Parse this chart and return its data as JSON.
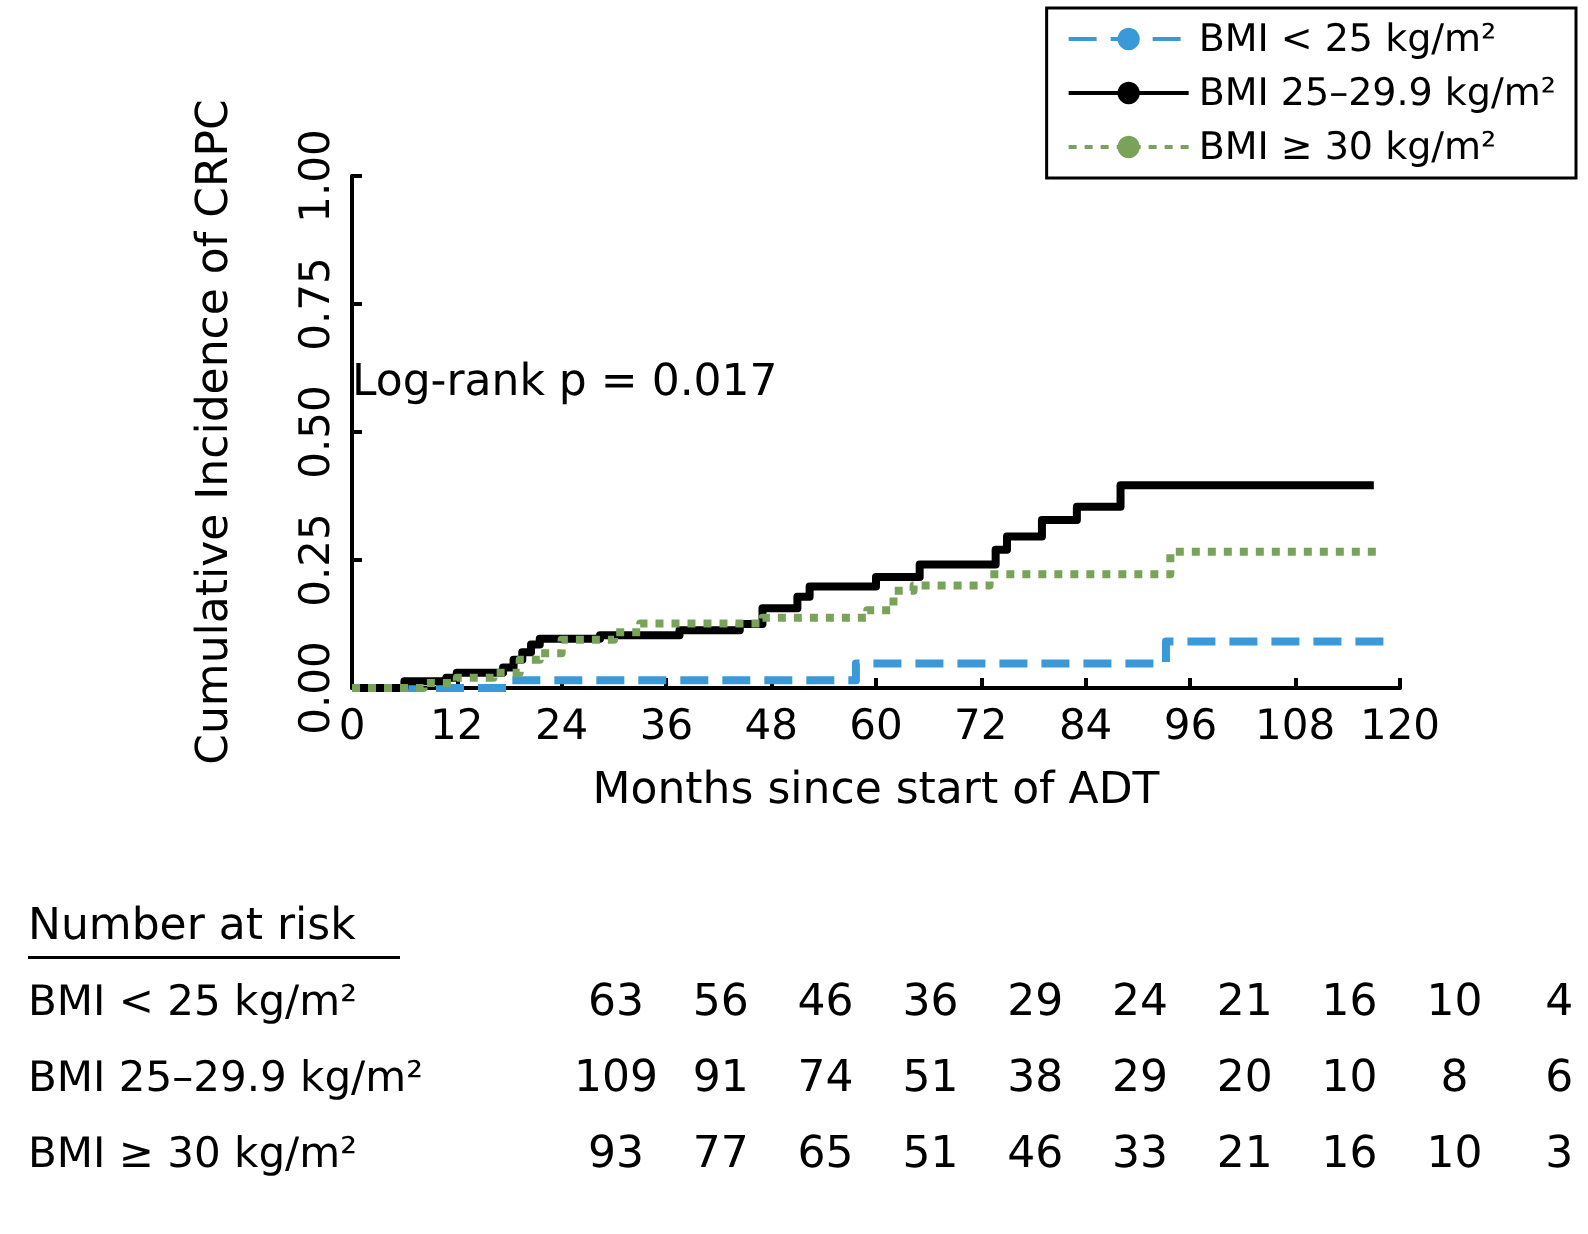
{
  "chart_data": {
    "type": "step",
    "xlabel": "Months since start of ADT",
    "ylabel": "Cumulative Incidence of CRPC",
    "xlim": [
      0,
      120
    ],
    "xticks": [
      0,
      12,
      24,
      36,
      48,
      60,
      72,
      84,
      96,
      108,
      120
    ],
    "ylim": [
      0,
      1
    ],
    "yticks": [
      {
        "value": 0,
        "label": "0.00"
      },
      {
        "value": 0.25,
        "label": "0.25"
      },
      {
        "value": 0.5,
        "label": "0.50"
      },
      {
        "value": 0.75,
        "label": "0.75"
      },
      {
        "value": 1,
        "label": "1.00"
      }
    ],
    "grid": false,
    "legend": "top right",
    "marker": "none",
    "series": [
      {
        "name": "BMI < 25 kg/m²",
        "color": "#3a9ad9",
        "line_style": "dashed",
        "x": [
          0,
          18,
          57.7,
          93.2,
          118.8
        ],
        "values": [
          0,
          0.015,
          0.048,
          0.091,
          0.091
        ]
      },
      {
        "name": "BMI 25–29.9 kg/m²",
        "color": "#000000",
        "line_style": "solid",
        "x": [
          0,
          6,
          10.8,
          12,
          17.3,
          18.5,
          19.5,
          20.5,
          21.5,
          28.4,
          37.5,
          44.4,
          47,
          51,
          52.4,
          60,
          65,
          73.7,
          75,
          79,
          83,
          88,
          117
        ],
        "values": [
          0,
          0.013,
          0.02,
          0.03,
          0.04,
          0.055,
          0.07,
          0.085,
          0.096,
          0.103,
          0.113,
          0.125,
          0.156,
          0.178,
          0.198,
          0.217,
          0.241,
          0.27,
          0.296,
          0.328,
          0.354,
          0.396,
          0.396
        ]
      },
      {
        "name": "BMI ≥ 30 kg/m²",
        "color": "#7aa35a",
        "line_style": "dotted",
        "x": [
          0,
          8.2,
          12,
          16.2,
          19.2,
          21.5,
          24,
          30,
          33,
          47,
          59,
          62,
          64.3,
          73,
          93.7,
          117.7
        ],
        "values": [
          0,
          0.01,
          0.02,
          0.03,
          0.055,
          0.068,
          0.094,
          0.109,
          0.126,
          0.137,
          0.152,
          0.19,
          0.2,
          0.222,
          0.266,
          0.266
        ]
      }
    ],
    "annotations": [
      "Log-rank p = 0.017",
      "Number at risk",
      "63 56 46 36 29 24 21 16 10 4",
      "109 91 74 51 38 29 20 10 8 6",
      "93 77 65 51 46 33 21 16 10 3"
    ]
  }
}
